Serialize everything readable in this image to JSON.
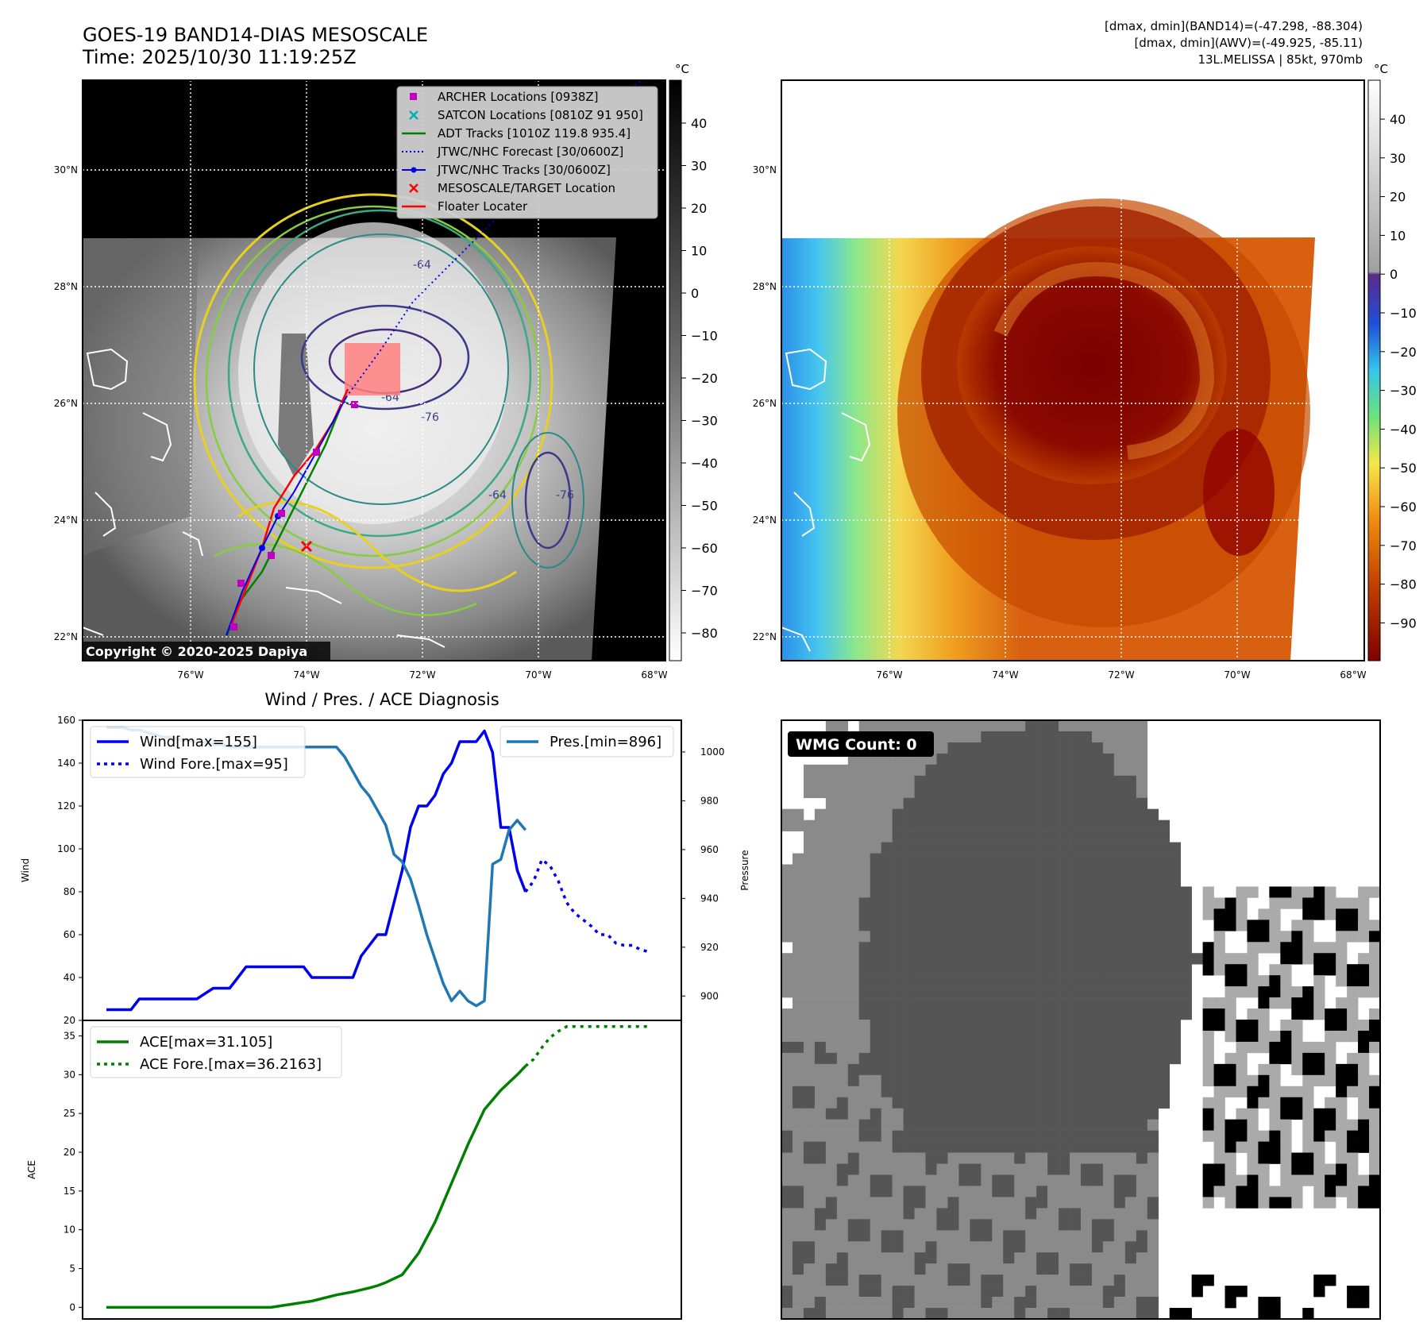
{
  "header": {
    "title_line1": "GOES-19 BAND14-DIAS MESOSCALE",
    "title_line2": "Time: 2025/10/30 11:19:25Z",
    "info_line1": "[dmax, dmin](BAND14)=(-47.298, -88.304)",
    "info_line2": "[dmax, dmin](AWV)=(-49.925, -85.11)",
    "info_line3": "13L.MELISSA | 85kt, 970mb"
  },
  "colors": {
    "wind": "#0000ee",
    "pressure": "#1f77b4",
    "ace": "#008000",
    "archer": "#c000c0",
    "satcon": "#00b0b0",
    "adt": "#008000",
    "forecast": "#0000ee",
    "target": "#ff0000",
    "floater": "#ff0000"
  },
  "map_left": {
    "colorbar_unit": "°C",
    "colorbar_ticks": [
      "40",
      "30",
      "20",
      "10",
      "0",
      "−10",
      "−20",
      "−30",
      "−40",
      "−50",
      "−60",
      "−70",
      "−80"
    ],
    "lat_labels": [
      "30°N",
      "28°N",
      "26°N",
      "24°N",
      "22°N"
    ],
    "lon_labels": [
      "76°W",
      "74°W",
      "72°W",
      "70°W",
      "68°W"
    ],
    "contour_labels": [
      "-76",
      "-64",
      "-64",
      "-76",
      "-64"
    ],
    "copyright": "Copyright © 2020-2025 Dapiya",
    "legend": [
      {
        "label": "ARCHER Locations [0938Z]",
        "icon": "square-marker"
      },
      {
        "label": "SATCON Locations [0810Z 91 950]",
        "icon": "x-marker"
      },
      {
        "label": "ADT Tracks [1010Z 119.8 935.4]",
        "icon": "line"
      },
      {
        "label": "JTWC/NHC Forecast [30/0600Z]",
        "icon": "dotted-line"
      },
      {
        "label": "JTWC/NHC Tracks [30/0600Z]",
        "icon": "line-dot"
      },
      {
        "label": "MESOSCALE/TARGET Location",
        "icon": "x-marker"
      },
      {
        "label": "Floater Locater",
        "icon": "line"
      }
    ]
  },
  "map_right": {
    "colorbar_unit": "°C",
    "colorbar_ticks": [
      "40",
      "30",
      "20",
      "10",
      "0",
      "−10",
      "−20",
      "−30",
      "−40",
      "−50",
      "−60",
      "−70",
      "−80",
      "−90"
    ],
    "lat_labels": [
      "30°N",
      "28°N",
      "26°N",
      "24°N",
      "22°N"
    ],
    "lon_labels": [
      "76°W",
      "74°W",
      "72°W",
      "70°W",
      "68°W"
    ]
  },
  "wmg": {
    "label": "WMG Count: 0"
  },
  "chart_data": [
    {
      "type": "line",
      "title": "Wind / Pres. / ACE Diagnosis",
      "ylabel": "Wind",
      "ylabel_right": "Pressure",
      "ylim": [
        20,
        160
      ],
      "ylim_right": [
        890,
        1013
      ],
      "yticks": [
        20,
        40,
        60,
        80,
        100,
        120,
        140,
        160
      ],
      "yticks_right": [
        900,
        920,
        940,
        960,
        980,
        1000
      ],
      "legend_left": [
        "Wind[max=155]",
        "Wind Fore.[max=95]"
      ],
      "legend_right": [
        "Pres.[min=896]"
      ],
      "series": [
        {
          "name": "Wind[max=155]",
          "axis": "left",
          "style": "solid",
          "x": [
            0,
            4,
            6,
            8,
            12,
            16,
            18,
            20,
            22,
            26,
            28,
            30,
            32,
            34,
            36,
            38,
            40,
            42,
            44,
            46,
            48,
            50,
            52,
            54,
            56,
            58,
            60,
            62,
            64,
            66,
            68,
            70,
            72,
            74,
            76,
            78,
            80,
            82,
            84,
            86,
            88,
            90,
            92,
            94,
            96,
            98,
            100,
            102
          ],
          "y": [
            25,
            25,
            25,
            30,
            30,
            30,
            30,
            30,
            30,
            35,
            35,
            35,
            40,
            45,
            45,
            45,
            45,
            45,
            45,
            45,
            45,
            40,
            40,
            40,
            40,
            40,
            40,
            50,
            55,
            60,
            60,
            75,
            90,
            110,
            120,
            120,
            125,
            135,
            140,
            150,
            150,
            150,
            155,
            145,
            110,
            110,
            90,
            80
          ]
        },
        {
          "name": "Wind Fore.[max=95]",
          "axis": "left",
          "style": "dotted",
          "x": [
            102,
            104,
            106,
            108,
            110,
            112,
            114,
            116,
            118,
            120,
            122,
            124,
            126,
            128,
            130,
            132
          ],
          "y": [
            80,
            85,
            95,
            92,
            85,
            75,
            70,
            67,
            64,
            60,
            60,
            56,
            55,
            55,
            53,
            52
          ]
        },
        {
          "name": "Pres.[min=896]",
          "axis": "right",
          "style": "solid",
          "x": [
            0,
            2,
            4,
            6,
            8,
            10,
            12,
            14,
            16,
            18,
            20,
            22,
            24,
            26,
            28,
            30,
            32,
            34,
            36,
            38,
            40,
            42,
            44,
            46,
            48,
            50,
            52,
            54,
            56,
            58,
            60,
            62,
            64,
            66,
            68,
            70,
            72,
            74,
            76,
            78,
            80,
            82,
            84,
            86,
            88,
            90,
            92,
            94,
            96,
            98,
            100,
            102
          ],
          "y": [
            1010,
            1010,
            1010,
            1009,
            1009,
            1008,
            1007,
            1006,
            1006,
            1005,
            1005,
            1004,
            1004,
            1003,
            1003,
            1002,
            1002,
            1002,
            1002,
            1002,
            1002,
            1002,
            1002,
            1002,
            1002,
            1002,
            1002,
            1002,
            1002,
            998,
            992,
            986,
            982,
            976,
            970,
            958,
            955,
            948,
            937,
            925,
            915,
            905,
            898,
            902,
            898,
            896,
            898,
            954,
            956,
            968,
            972,
            968
          ]
        }
      ]
    },
    {
      "type": "line",
      "ylabel": "ACE",
      "ylim": [
        -1.5,
        37
      ],
      "yticks": [
        0,
        5,
        10,
        15,
        20,
        25,
        30,
        35
      ],
      "legend": [
        "ACE[max=31.105]",
        "ACE Fore.[max=36.2163]"
      ],
      "series": [
        {
          "name": "ACE[max=31.105]",
          "style": "solid",
          "x": [
            0,
            10,
            20,
            30,
            40,
            50,
            56,
            60,
            64,
            66,
            68,
            72,
            76,
            80,
            84,
            88,
            92,
            96,
            98,
            100,
            102
          ],
          "y": [
            0,
            0,
            0,
            0,
            0,
            0.8,
            1.6,
            2,
            2.5,
            2.8,
            3.2,
            4.2,
            7,
            11,
            16,
            21,
            25.5,
            28,
            29,
            30,
            31.1
          ]
        },
        {
          "name": "ACE Fore.[max=36.2163]",
          "style": "dotted",
          "x": [
            102,
            104,
            106,
            108,
            110,
            112,
            114,
            116,
            118,
            120,
            124,
            128,
            132
          ],
          "y": [
            31.1,
            32,
            33.5,
            34.8,
            35.6,
            36.2,
            36.2,
            36.2,
            36.2,
            36.2,
            36.2,
            36.2,
            36.2
          ]
        }
      ]
    }
  ]
}
